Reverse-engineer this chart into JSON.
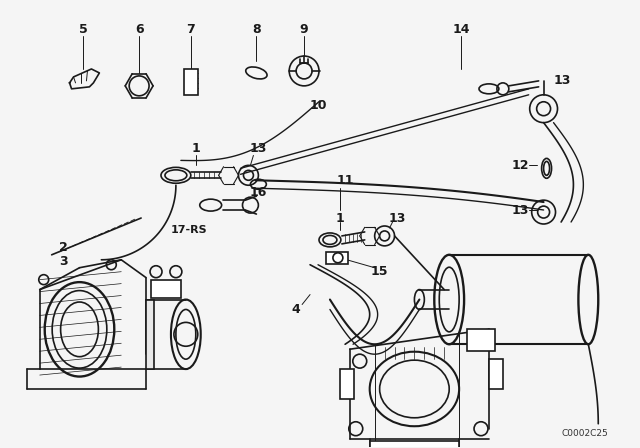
{
  "bg_color": "#f5f5f5",
  "line_color": "#1a1a1a",
  "fig_width": 6.4,
  "fig_height": 4.48,
  "dpi": 100,
  "catalog_number": "C0002C25",
  "label_fontsize": 8.5,
  "label_bold": true
}
